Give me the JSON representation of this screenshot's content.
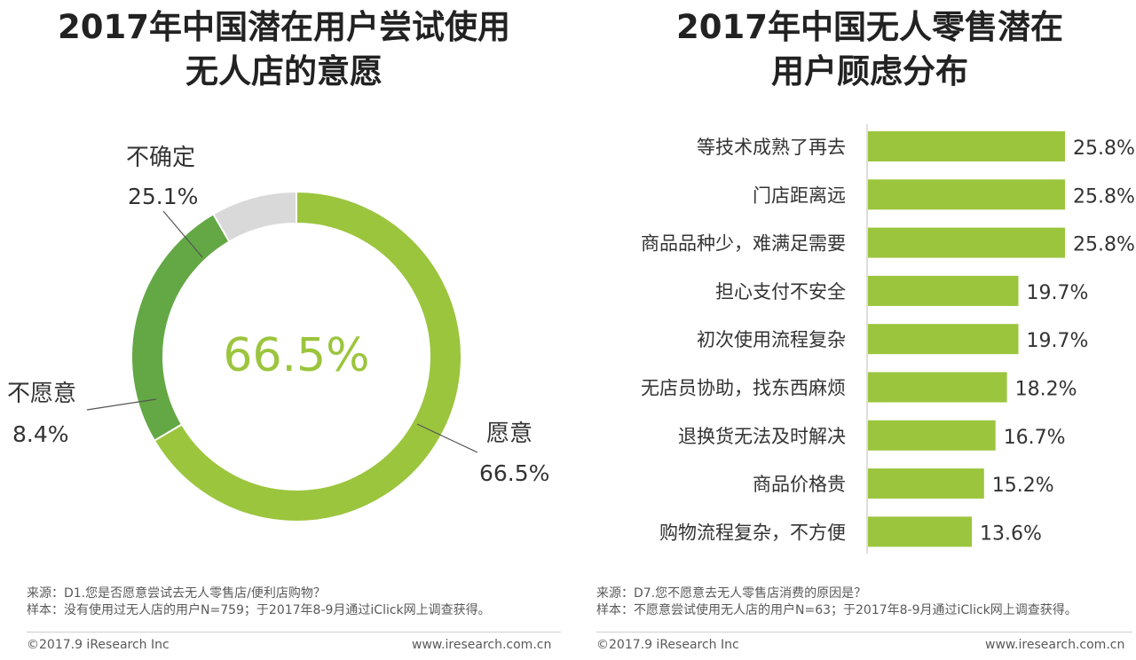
{
  "left": {
    "title_line1": "2017年中国潜在用户尝试使用",
    "title_line2": "无人店的意愿",
    "center_value": "66.5%",
    "source": "来源：D1.您是否愿意尝试去无人零售店/便利店购物？",
    "sample": "样本：没有使用过无人店的用户N=759；于2017年8-9月通过iClick网上调查获得。",
    "copyright": "©2017.9 iResearch Inc",
    "website": "www.iresearch.com.cn"
  },
  "right": {
    "title_line1": "2017年中国无人零售潜在",
    "title_line2": "用户顾虑分布",
    "source": "来源：D7.您不愿意去无人零售店消费的原因是？",
    "sample": "样本：不愿意尝试使用无人店的用户N=63；于2017年8-9月通过iClick网上调查获得。",
    "copyright": "©2017.9 iResearch Inc",
    "website": "www.iresearch.com.cn"
  },
  "chart_data": [
    {
      "type": "pie",
      "variant": "donut",
      "title": "2017年中国潜在用户尝试使用无人店的意愿",
      "categories": [
        "愿意",
        "不确定",
        "不愿意"
      ],
      "values": [
        66.5,
        25.1,
        8.4
      ],
      "value_labels": [
        "66.5%",
        "25.1%",
        "8.4%"
      ],
      "colors": [
        "#9bc53d",
        "#63a845",
        "#d9d9d9"
      ],
      "center_label": "66.5%"
    },
    {
      "type": "bar",
      "orientation": "horizontal",
      "title": "2017年中国无人零售潜在用户顾虑分布",
      "categories": [
        "等技术成熟了再去",
        "门店距离远",
        "商品品种少，难满足需要",
        "担心支付不安全",
        "初次使用流程复杂",
        "无店员协助，找东西麻烦",
        "退换货无法及时解决",
        "商品价格贵",
        "购物流程复杂，不方便"
      ],
      "values": [
        25.8,
        25.8,
        25.8,
        19.7,
        19.7,
        18.2,
        16.7,
        15.2,
        13.6
      ],
      "value_labels": [
        "25.8%",
        "25.8%",
        "25.8%",
        "19.7%",
        "19.7%",
        "18.2%",
        "16.7%",
        "15.2%",
        "13.6%"
      ],
      "color": "#9bc53d",
      "grid": false
    }
  ]
}
